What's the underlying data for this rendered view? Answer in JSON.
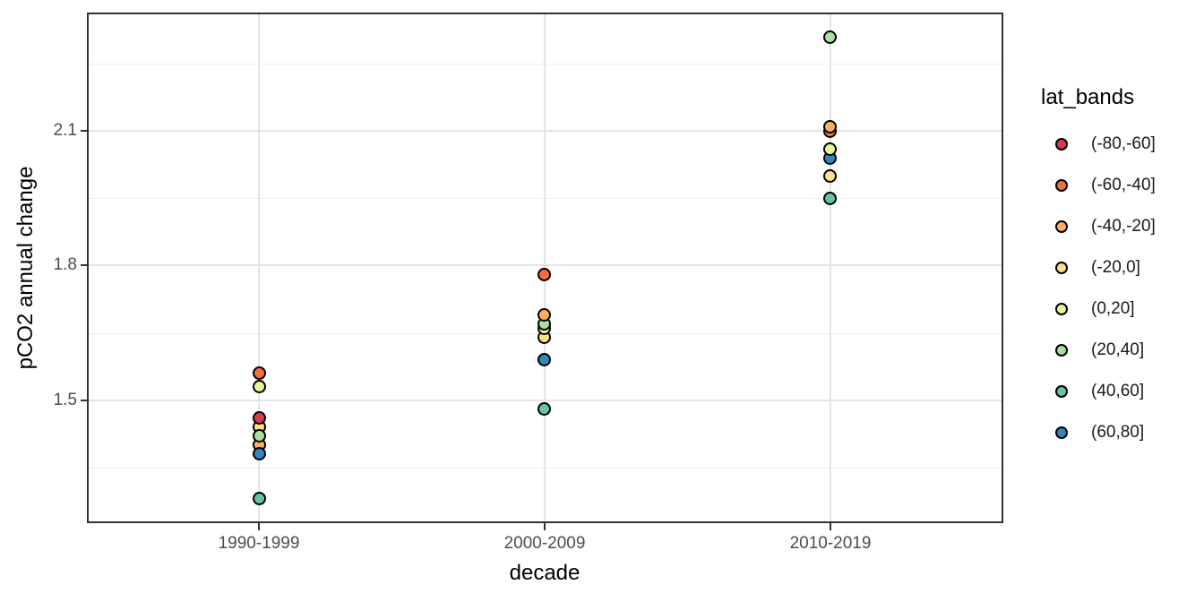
{
  "figure": {
    "background": "#ffffff",
    "panel_border_color": "#333333",
    "grid_major_color": "#e4e4e4",
    "grid_minor_color": "#efefef",
    "tick_color": "#333333",
    "tick_label_color": "#4d4d4d",
    "point_stroke_color": "#000000"
  },
  "legend": {
    "title": "lat_bands",
    "items": [
      {
        "label": "(-80,-60]",
        "color": "#d53e4f"
      },
      {
        "label": "(-60,-40]",
        "color": "#f46d43"
      },
      {
        "label": "(-40,-20]",
        "color": "#fdae61"
      },
      {
        "label": "(-20,0]",
        "color": "#fee08b"
      },
      {
        "label": "(0,20]",
        "color": "#e6f598"
      },
      {
        "label": "(20,40]",
        "color": "#abdda4"
      },
      {
        "label": "(40,60]",
        "color": "#66c2a5"
      },
      {
        "label": "(60,80]",
        "color": "#3288bd"
      }
    ]
  },
  "chart_data": {
    "type": "scatter",
    "title": "",
    "xlabel": "decade",
    "ylabel": "pCO2 annual change",
    "categories": [
      "1990-1999",
      "2000-2009",
      "2010-2019"
    ],
    "y_tick_values": [
      1.5,
      1.8,
      2.1
    ],
    "y_tick_labels": [
      "1.5",
      "1.8",
      "2.1"
    ],
    "y_minor_gridlines": [
      1.35,
      1.65,
      1.95,
      2.25
    ],
    "ylim": [
      1.23,
      2.36
    ],
    "grid": true,
    "legend_position": "right",
    "legend_title": "lat_bands",
    "series": [
      {
        "name": "(-80,-60]",
        "color": "#d53e4f",
        "values": [
          1.46,
          null,
          null
        ],
        "z": [
          5,
          0,
          0
        ]
      },
      {
        "name": "(-60,-40]",
        "color": "#f46d43",
        "values": [
          1.56,
          1.78,
          2.1
        ],
        "z": [
          3,
          3,
          1
        ]
      },
      {
        "name": "(-40,-20]",
        "color": "#fdae61",
        "values": [
          1.4,
          1.69,
          2.11
        ],
        "z": [
          1,
          6,
          2
        ]
      },
      {
        "name": "(-20,0]",
        "color": "#fee08b",
        "values": [
          1.44,
          1.64,
          2.0
        ],
        "z": [
          2,
          3,
          1
        ]
      },
      {
        "name": "(0,20]",
        "color": "#e6f598",
        "values": [
          1.53,
          1.66,
          2.06
        ],
        "z": [
          3,
          4,
          2
        ]
      },
      {
        "name": "(20,40]",
        "color": "#abdda4",
        "values": [
          1.42,
          1.67,
          2.31
        ],
        "z": [
          4,
          5,
          1
        ]
      },
      {
        "name": "(40,60]",
        "color": "#66c2a5",
        "values": [
          1.28,
          1.48,
          1.95
        ],
        "z": [
          1,
          1,
          1
        ]
      },
      {
        "name": "(60,80]",
        "color": "#3288bd",
        "values": [
          1.38,
          1.59,
          2.04
        ],
        "z": [
          6,
          1,
          1
        ]
      }
    ]
  }
}
